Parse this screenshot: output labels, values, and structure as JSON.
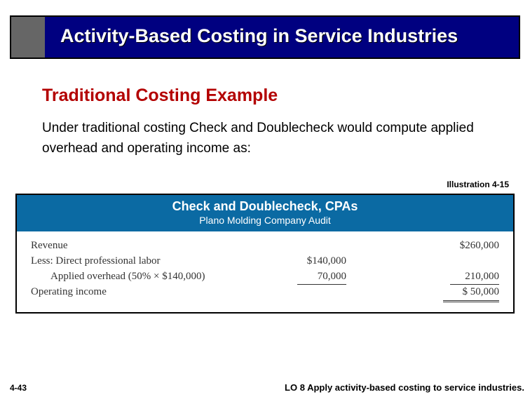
{
  "header": {
    "title": "Activity-Based Costing in Service Industries"
  },
  "subtitle": "Traditional Costing Example",
  "body_text": "Under traditional costing Check and Doublecheck would compute applied overhead and operating income as:",
  "illustration_label": "Illustration 4-15",
  "figure": {
    "company": "Check and Doublecheck, CPAs",
    "subtitle": "Plano Molding Company Audit",
    "rows": {
      "revenue_label": "Revenue",
      "revenue_value": "$260,000",
      "less_label": "Less: Direct professional labor",
      "less_mid": "$140,000",
      "applied_label": "Applied overhead (50% × $140,000)",
      "applied_mid": "70,000",
      "applied_right": "210,000",
      "op_label": "Operating income",
      "op_value": "$  50,000"
    }
  },
  "footer": {
    "page": "4-43",
    "lo": "LO 8  Apply activity-based costing to service industries."
  }
}
